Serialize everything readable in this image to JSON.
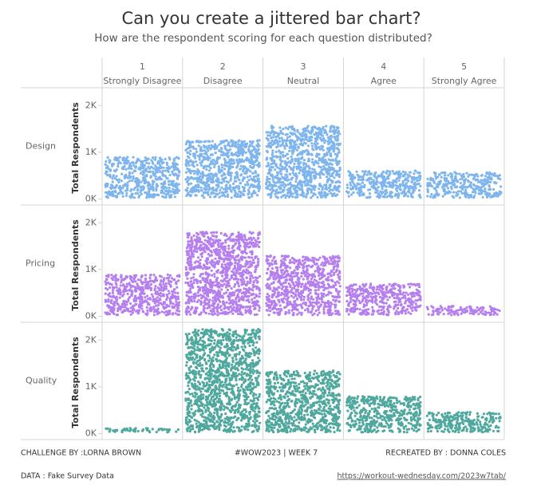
{
  "chart_data": {
    "type": "jittered_bar",
    "title": "Can you create a jittered bar chart?",
    "subtitle": "How are the respondent scoring for each question distributed?",
    "category_numbers": [
      "1",
      "2",
      "3",
      "4",
      "5"
    ],
    "categories": [
      "Strongly Disagree",
      "Disagree",
      "Neutral",
      "Agree",
      "Strongly Agree"
    ],
    "y_label": "Total Respondents",
    "ylim": [
      -130,
      2380
    ],
    "yticks": [
      {
        "value": 0,
        "label": "0K"
      },
      {
        "value": 1000,
        "label": "1K"
      },
      {
        "value": 2000,
        "label": "2K"
      }
    ],
    "series": [
      {
        "name": "Design",
        "color": "#7fb5ee",
        "values": [
          920,
          1280,
          1590,
          630,
          600
        ]
      },
      {
        "name": "Pricing",
        "color": "#b57fef",
        "values": [
          920,
          1830,
          1320,
          720,
          240
        ]
      },
      {
        "name": "Quality",
        "color": "#4fa89e",
        "values": [
          140,
          2260,
          1370,
          820,
          480
        ]
      }
    ]
  },
  "footer": {
    "challenge": "CHALLENGE BY :LORNA BROWN",
    "week": "#WOW2023 | WEEK 7",
    "recreated": "RECREATED BY : DONNA COLES",
    "data_source": "DATA : Fake Survey Data",
    "link": "https://workout-wednesday.com/2023w7tab/"
  }
}
